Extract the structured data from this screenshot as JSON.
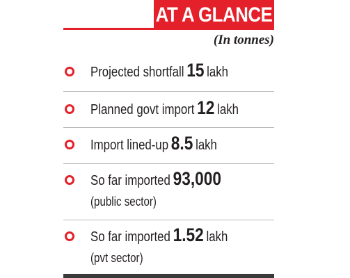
{
  "header": {
    "title": "AT A GLANCE",
    "unit_note": "(In tonnes)"
  },
  "items": [
    {
      "label": "Projected shortfall",
      "value": "15",
      "unit": "lakh",
      "sub": ""
    },
    {
      "label": "Planned govt import",
      "value": "12",
      "unit": "lakh",
      "sub": ""
    },
    {
      "label": "Import lined-up",
      "value": "8.5",
      "unit": "lakh",
      "sub": ""
    },
    {
      "label": "So far imported",
      "value": "93,000",
      "unit": "",
      "sub": "(public sector)"
    },
    {
      "label": "So far imported",
      "value": "1.52",
      "unit": "lakh",
      "sub": "(pvt sector)"
    }
  ],
  "colors": {
    "accent": "#e4212b",
    "text": "#231f20",
    "divider": "#b8b8b8",
    "bottom_rule": "#3a3a3a"
  }
}
